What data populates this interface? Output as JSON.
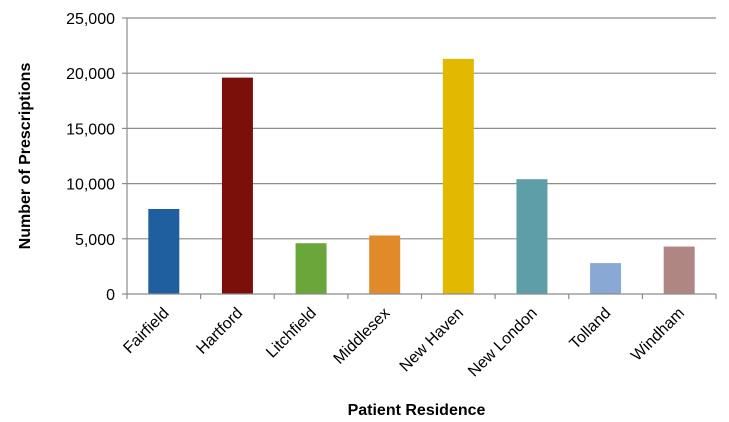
{
  "chart_data": {
    "type": "bar",
    "categories": [
      "Fairfield",
      "Hartford",
      "Litchfield",
      "Middlesex",
      "New Haven",
      "New London",
      "Tolland",
      "Windham"
    ],
    "values": [
      7700,
      19600,
      4600,
      5300,
      21300,
      10400,
      2800,
      4300
    ],
    "colors": [
      "#1f5fa0",
      "#7b0f0a",
      "#6aa63a",
      "#e08a2a",
      "#e3b800",
      "#5e9ea8",
      "#8aa8d4",
      "#b08682"
    ],
    "title": "",
    "xlabel": "Patient Residence",
    "ylabel": "Number of Prescriptions",
    "ylim": [
      0,
      25000
    ],
    "yticks": [
      0,
      5000,
      10000,
      15000,
      20000,
      25000
    ],
    "ytick_labels": [
      "0",
      "5,000",
      "10,000",
      "15,000",
      "20,000",
      "25,000"
    ],
    "grid": true,
    "legend": "none"
  }
}
